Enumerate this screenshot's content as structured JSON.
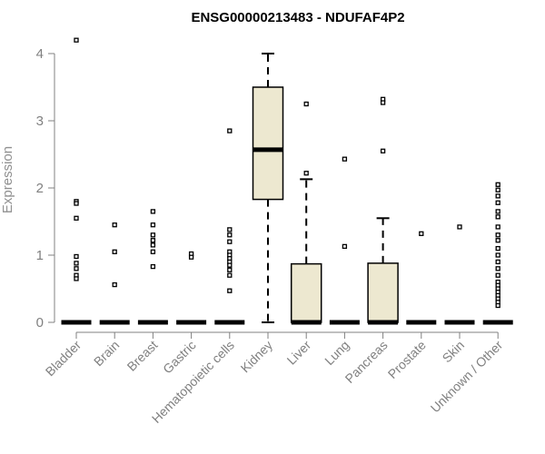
{
  "chart_data": {
    "type": "box",
    "title": "ENSG00000213483 - NDUFAF4P2",
    "xlabel": "",
    "ylabel": "Expression",
    "ylim": [
      0,
      4.2
    ],
    "yticks": [
      0,
      1,
      2,
      3,
      4
    ],
    "grid": false,
    "colors": {
      "box_fill": "#ede8d0",
      "axis": "#808080",
      "points": "#000000"
    },
    "categories": [
      "Bladder",
      "Brain",
      "Breast",
      "Gastric",
      "Hematopoietic cells",
      "Kidney",
      "Liver",
      "Lung",
      "Pancreas",
      "Prostate",
      "Skin",
      "Unknown / Other"
    ],
    "boxes": [
      {
        "category": "Bladder",
        "q1": 0,
        "median": 0,
        "q3": 0,
        "whisker_low": 0,
        "whisker_high": 0,
        "outliers": [
          4.2,
          1.8,
          1.77,
          1.55,
          0.98,
          0.88,
          0.8,
          0.7,
          0.65
        ]
      },
      {
        "category": "Brain",
        "q1": 0,
        "median": 0,
        "q3": 0,
        "whisker_low": 0,
        "whisker_high": 0,
        "outliers": [
          1.45,
          1.05,
          0.56
        ]
      },
      {
        "category": "Breast",
        "q1": 0,
        "median": 0,
        "q3": 0,
        "whisker_low": 0,
        "whisker_high": 0,
        "outliers": [
          1.65,
          1.45,
          1.3,
          1.22,
          1.15,
          1.05,
          0.83
        ]
      },
      {
        "category": "Gastric",
        "q1": 0,
        "median": 0,
        "q3": 0,
        "whisker_low": 0,
        "whisker_high": 0,
        "outliers": [
          1.02,
          0.97
        ]
      },
      {
        "category": "Hematopoietic cells",
        "q1": 0,
        "median": 0,
        "q3": 0,
        "whisker_low": 0,
        "whisker_high": 0,
        "outliers": [
          2.85,
          1.38,
          1.3,
          1.2,
          1.05,
          1.0,
          0.95,
          0.9,
          0.85,
          0.78,
          0.7,
          0.47
        ]
      },
      {
        "category": "Kidney",
        "q1": 1.83,
        "median": 2.57,
        "q3": 3.5,
        "whisker_low": 0,
        "whisker_high": 4.0,
        "outliers": []
      },
      {
        "category": "Liver",
        "q1": 0,
        "median": 0,
        "q3": 0.87,
        "whisker_low": 0,
        "whisker_high": 2.13,
        "outliers": [
          3.25,
          2.22
        ]
      },
      {
        "category": "Lung",
        "q1": 0,
        "median": 0,
        "q3": 0,
        "whisker_low": 0,
        "whisker_high": 0,
        "outliers": [
          2.43,
          1.13
        ]
      },
      {
        "category": "Pancreas",
        "q1": 0,
        "median": 0,
        "q3": 0.88,
        "whisker_low": 0,
        "whisker_high": 1.55,
        "outliers": [
          3.32,
          3.27,
          2.55
        ]
      },
      {
        "category": "Prostate",
        "q1": 0,
        "median": 0,
        "q3": 0,
        "whisker_low": 0,
        "whisker_high": 0,
        "outliers": [
          1.32
        ]
      },
      {
        "category": "Skin",
        "q1": 0,
        "median": 0,
        "q3": 0,
        "whisker_low": 0,
        "whisker_high": 0,
        "outliers": [
          1.42
        ]
      },
      {
        "category": "Unknown / Other",
        "q1": 0,
        "median": 0,
        "q3": 0,
        "whisker_low": 0,
        "whisker_high": 0,
        "outliers": [
          2.05,
          1.97,
          1.88,
          1.78,
          1.65,
          1.57,
          1.42,
          1.3,
          1.22,
          1.1,
          1.0,
          0.9,
          0.8,
          0.7,
          0.6,
          0.55,
          0.5,
          0.45,
          0.4,
          0.35,
          0.3,
          0.25
        ]
      }
    ]
  }
}
